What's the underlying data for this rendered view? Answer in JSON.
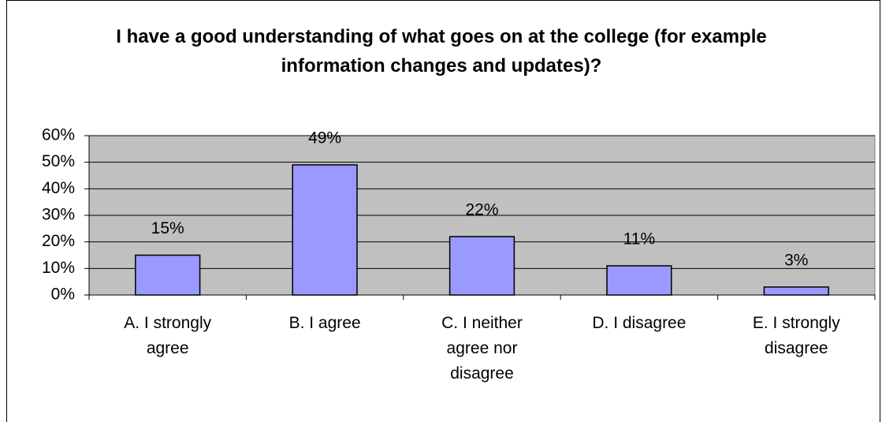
{
  "chart_data": {
    "type": "bar",
    "title": "I have a good understanding of what goes on at the college (for example information changes and updates)?",
    "categories": [
      "A. I strongly agree",
      "B. I agree",
      "C. I neither agree nor disagree",
      "D. I disagree",
      "E. I strongly disagree"
    ],
    "values": [
      15,
      49,
      22,
      11,
      3
    ],
    "value_labels": [
      "15%",
      "49%",
      "22%",
      "11%",
      "3%"
    ],
    "color": "#9999ff",
    "ylim": [
      0,
      60
    ],
    "yticks": [
      {
        "value": 0,
        "label": "0%"
      },
      {
        "value": 10,
        "label": "10%"
      },
      {
        "value": 20,
        "label": "20%"
      },
      {
        "value": 30,
        "label": "30%"
      },
      {
        "value": 40,
        "label": "40%"
      },
      {
        "value": 50,
        "label": "50%"
      },
      {
        "value": 60,
        "label": "60%"
      }
    ],
    "grid": true
  }
}
